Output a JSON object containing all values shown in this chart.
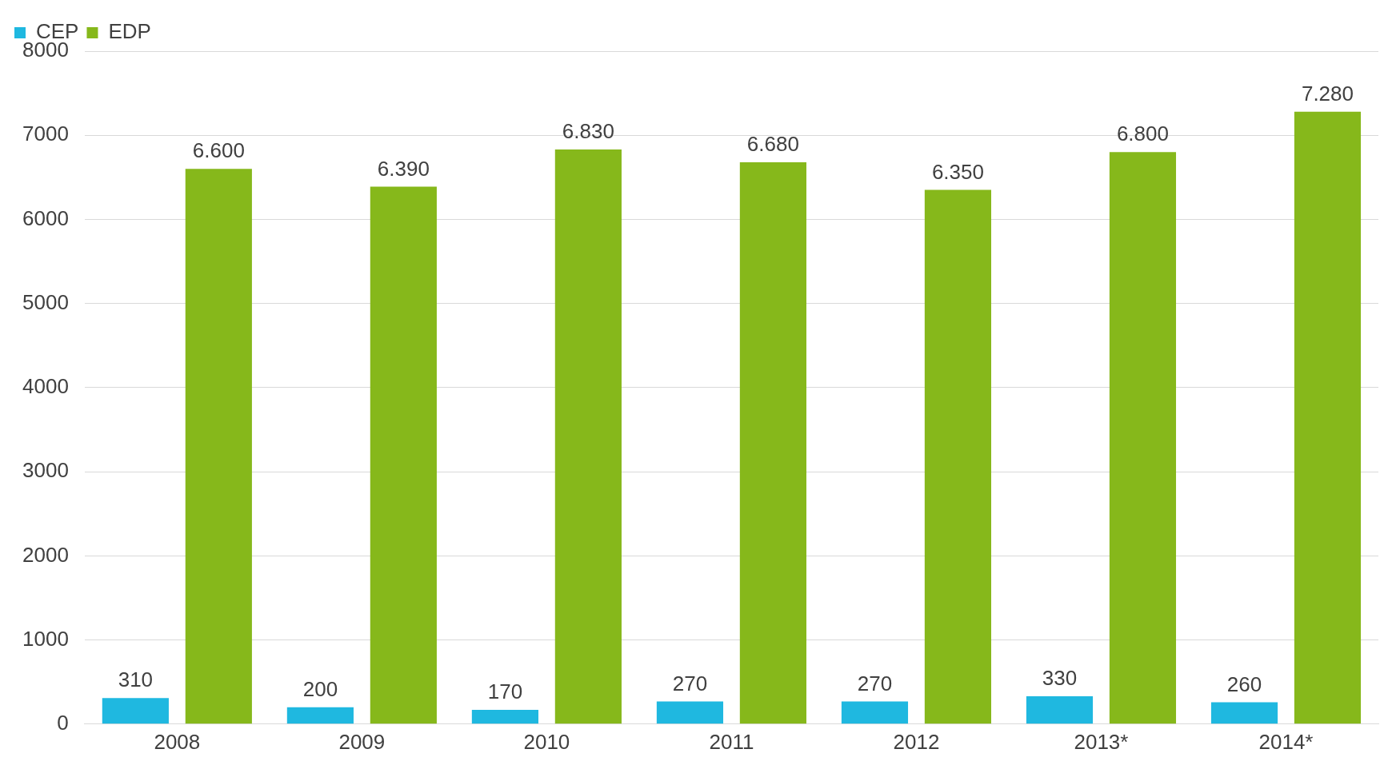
{
  "chart_data": {
    "type": "bar",
    "categories": [
      "2008",
      "2009",
      "2010",
      "2011",
      "2012",
      "2013*",
      "2014*"
    ],
    "series": [
      {
        "name": "CEP",
        "color": "#1fb8e0",
        "values": [
          310,
          200,
          170,
          270,
          270,
          330,
          260
        ],
        "value_labels": [
          "310",
          "200",
          "170",
          "270",
          "270",
          "330",
          "260"
        ]
      },
      {
        "name": "EDP",
        "color": "#86b81b",
        "values": [
          6600,
          6390,
          6830,
          6680,
          6350,
          6800,
          7280
        ],
        "value_labels": [
          "6.600",
          "6.390",
          "6.830",
          "6.680",
          "6.350",
          "6.800",
          "7.280"
        ]
      }
    ],
    "ylim": [
      0,
      8000
    ],
    "yticks": [
      0,
      1000,
      2000,
      3000,
      4000,
      5000,
      6000,
      7000,
      8000
    ],
    "grid": "y",
    "legend": "top left"
  }
}
